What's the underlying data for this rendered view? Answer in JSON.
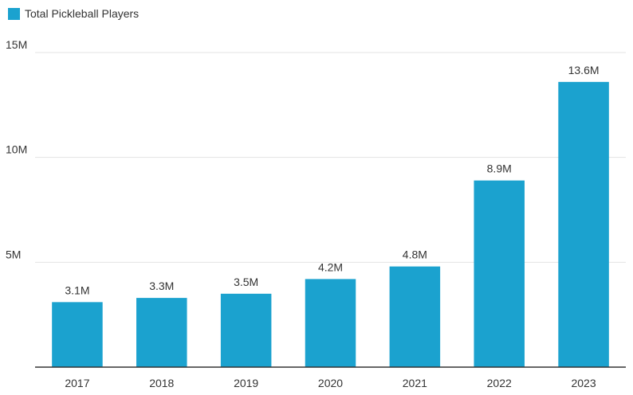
{
  "colors": {
    "bar": "#1ba2cf",
    "grid": "#e3e3e3",
    "axis": "#333333",
    "text": "#333333"
  },
  "legend": {
    "label": "Total Pickleball Players"
  },
  "chart_data": {
    "type": "bar",
    "categories": [
      "2017",
      "2018",
      "2019",
      "2020",
      "2021",
      "2022",
      "2023"
    ],
    "series": [
      {
        "name": "Total Pickleball Players",
        "values": [
          3.1,
          3.3,
          3.5,
          4.2,
          4.8,
          8.9,
          13.6
        ],
        "labels": [
          "3.1M",
          "3.3M",
          "3.5M",
          "4.2M",
          "4.8M",
          "8.9M",
          "13.6M"
        ]
      }
    ],
    "ylim": [
      0,
      15
    ],
    "yticks": [
      {
        "value": 5,
        "label": "5M"
      },
      {
        "value": 10,
        "label": "10M"
      },
      {
        "value": 15,
        "label": "15M"
      }
    ],
    "grid": true,
    "legend_position": "top-left"
  }
}
